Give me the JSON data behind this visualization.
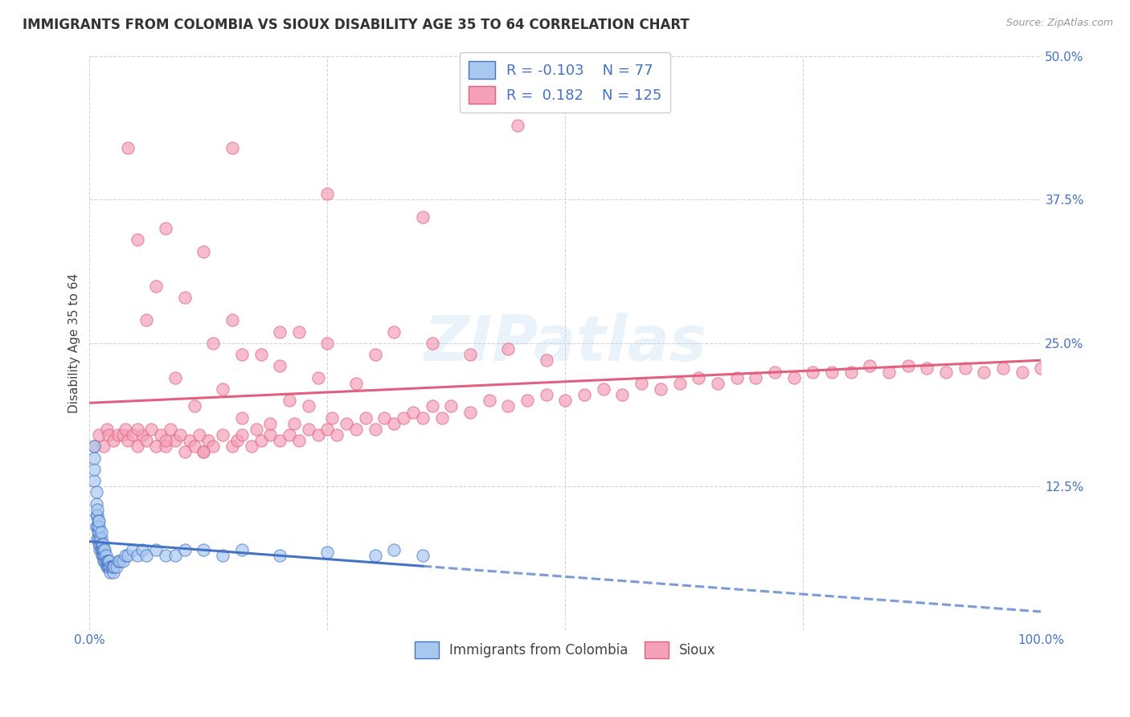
{
  "title": "IMMIGRANTS FROM COLOMBIA VS SIOUX DISABILITY AGE 35 TO 64 CORRELATION CHART",
  "source": "Source: ZipAtlas.com",
  "ylabel": "Disability Age 35 to 64",
  "xlim": [
    0,
    1.0
  ],
  "ylim": [
    0,
    0.5
  ],
  "yticks": [
    0.0,
    0.125,
    0.25,
    0.375,
    0.5
  ],
  "xticks": [
    0.0,
    0.25,
    0.5,
    0.75,
    1.0
  ],
  "legend_label1": "Immigrants from Colombia",
  "legend_label2": "Sioux",
  "R1": -0.103,
  "N1": 77,
  "R2": 0.182,
  "N2": 125,
  "color_blue": "#A8C8F0",
  "color_pink": "#F4A0B8",
  "color_blue_line": "#4472C4",
  "color_pink_line": "#E06080",
  "background_color": "#FFFFFF",
  "grid_color": "#D0D0D0",
  "watermark": "ZIPatlas",
  "blue_scatter_x": [
    0.005,
    0.005,
    0.005,
    0.005,
    0.007,
    0.007,
    0.007,
    0.007,
    0.008,
    0.008,
    0.008,
    0.008,
    0.009,
    0.009,
    0.01,
    0.01,
    0.01,
    0.01,
    0.01,
    0.011,
    0.011,
    0.011,
    0.012,
    0.012,
    0.012,
    0.012,
    0.013,
    0.013,
    0.013,
    0.014,
    0.014,
    0.014,
    0.015,
    0.015,
    0.015,
    0.016,
    0.016,
    0.016,
    0.017,
    0.017,
    0.018,
    0.018,
    0.019,
    0.019,
    0.02,
    0.02,
    0.021,
    0.021,
    0.022,
    0.022,
    0.023,
    0.024,
    0.025,
    0.025,
    0.026,
    0.028,
    0.03,
    0.032,
    0.035,
    0.038,
    0.04,
    0.045,
    0.05,
    0.055,
    0.06,
    0.07,
    0.08,
    0.09,
    0.1,
    0.12,
    0.14,
    0.16,
    0.2,
    0.25,
    0.3,
    0.32,
    0.35
  ],
  "blue_scatter_y": [
    0.13,
    0.14,
    0.15,
    0.16,
    0.09,
    0.1,
    0.11,
    0.12,
    0.08,
    0.09,
    0.1,
    0.105,
    0.085,
    0.095,
    0.075,
    0.08,
    0.085,
    0.09,
    0.095,
    0.07,
    0.075,
    0.08,
    0.07,
    0.075,
    0.08,
    0.085,
    0.065,
    0.07,
    0.075,
    0.065,
    0.07,
    0.075,
    0.06,
    0.065,
    0.07,
    0.06,
    0.065,
    0.07,
    0.06,
    0.065,
    0.055,
    0.06,
    0.055,
    0.06,
    0.055,
    0.06,
    0.055,
    0.06,
    0.05,
    0.055,
    0.055,
    0.055,
    0.05,
    0.055,
    0.055,
    0.055,
    0.06,
    0.06,
    0.06,
    0.065,
    0.065,
    0.07,
    0.065,
    0.07,
    0.065,
    0.07,
    0.065,
    0.065,
    0.07,
    0.07,
    0.065,
    0.07,
    0.065,
    0.068,
    0.065,
    0.07,
    0.065
  ],
  "pink_scatter_x": [
    0.005,
    0.01,
    0.015,
    0.018,
    0.02,
    0.025,
    0.03,
    0.035,
    0.038,
    0.04,
    0.045,
    0.05,
    0.055,
    0.06,
    0.065,
    0.07,
    0.075,
    0.08,
    0.085,
    0.09,
    0.095,
    0.1,
    0.105,
    0.11,
    0.115,
    0.12,
    0.125,
    0.13,
    0.14,
    0.15,
    0.155,
    0.16,
    0.17,
    0.175,
    0.18,
    0.19,
    0.2,
    0.21,
    0.215,
    0.22,
    0.23,
    0.24,
    0.25,
    0.255,
    0.26,
    0.27,
    0.28,
    0.29,
    0.3,
    0.31,
    0.32,
    0.33,
    0.34,
    0.35,
    0.36,
    0.37,
    0.38,
    0.4,
    0.42,
    0.44,
    0.46,
    0.48,
    0.5,
    0.52,
    0.54,
    0.56,
    0.58,
    0.6,
    0.62,
    0.64,
    0.66,
    0.68,
    0.7,
    0.72,
    0.74,
    0.76,
    0.78,
    0.8,
    0.82,
    0.84,
    0.86,
    0.88,
    0.9,
    0.92,
    0.94,
    0.96,
    0.98,
    1.0,
    0.05,
    0.08,
    0.12,
    0.16,
    0.2,
    0.24,
    0.28,
    0.32,
    0.36,
    0.4,
    0.44,
    0.48,
    0.15,
    0.25,
    0.35,
    0.45,
    0.05,
    0.1,
    0.15,
    0.2,
    0.25,
    0.3,
    0.07,
    0.13,
    0.18,
    0.22,
    0.12,
    0.08,
    0.04,
    0.06,
    0.09,
    0.11,
    0.14,
    0.16,
    0.19,
    0.21,
    0.23
  ],
  "pink_scatter_y": [
    0.16,
    0.17,
    0.16,
    0.175,
    0.17,
    0.165,
    0.17,
    0.17,
    0.175,
    0.165,
    0.17,
    0.16,
    0.17,
    0.165,
    0.175,
    0.16,
    0.17,
    0.16,
    0.175,
    0.165,
    0.17,
    0.155,
    0.165,
    0.16,
    0.17,
    0.155,
    0.165,
    0.16,
    0.17,
    0.16,
    0.165,
    0.17,
    0.16,
    0.175,
    0.165,
    0.17,
    0.165,
    0.17,
    0.18,
    0.165,
    0.175,
    0.17,
    0.175,
    0.185,
    0.17,
    0.18,
    0.175,
    0.185,
    0.175,
    0.185,
    0.18,
    0.185,
    0.19,
    0.185,
    0.195,
    0.185,
    0.195,
    0.19,
    0.2,
    0.195,
    0.2,
    0.205,
    0.2,
    0.205,
    0.21,
    0.205,
    0.215,
    0.21,
    0.215,
    0.22,
    0.215,
    0.22,
    0.22,
    0.225,
    0.22,
    0.225,
    0.225,
    0.225,
    0.23,
    0.225,
    0.23,
    0.228,
    0.225,
    0.228,
    0.225,
    0.228,
    0.225,
    0.228,
    0.175,
    0.165,
    0.155,
    0.24,
    0.23,
    0.22,
    0.215,
    0.26,
    0.25,
    0.24,
    0.245,
    0.235,
    0.42,
    0.38,
    0.36,
    0.44,
    0.34,
    0.29,
    0.27,
    0.26,
    0.25,
    0.24,
    0.3,
    0.25,
    0.24,
    0.26,
    0.33,
    0.35,
    0.42,
    0.27,
    0.22,
    0.195,
    0.21,
    0.185,
    0.18,
    0.2,
    0.195
  ]
}
